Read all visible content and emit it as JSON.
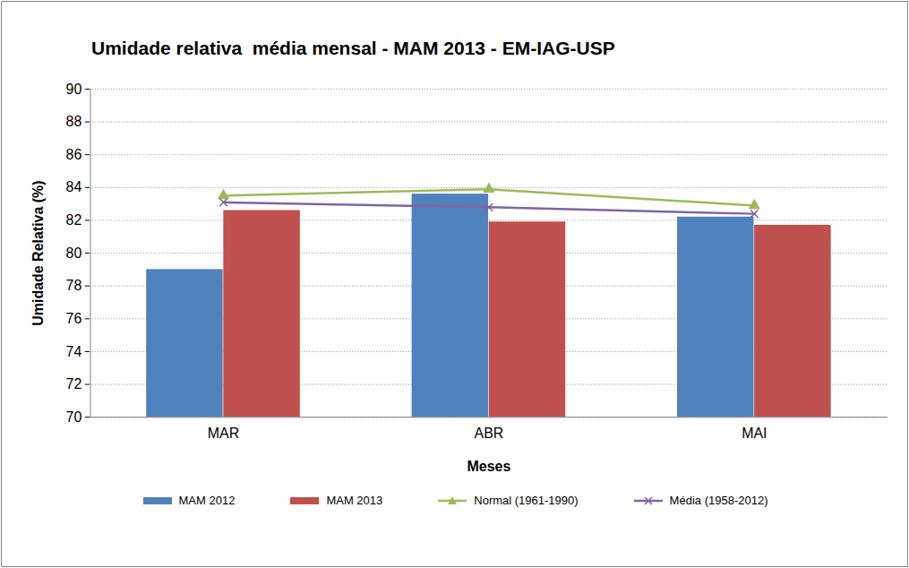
{
  "chart_data": {
    "type": "bar",
    "title": "Umidade relativa  média mensal - MAM 2013 - EM-IAG-USP",
    "x_label": "Meses",
    "y_label": "Umidade Relativa (%)",
    "categories": [
      "MAR",
      "ABR",
      "MAI"
    ],
    "series": [
      {
        "name": "MAM 2012",
        "type": "bar",
        "color": "#4f81bd",
        "values": [
          79.0,
          83.6,
          82.2
        ]
      },
      {
        "name": "MAM 2013",
        "type": "bar",
        "color": "#c0504d",
        "values": [
          82.6,
          81.9,
          81.7
        ]
      },
      {
        "name": "Normal (1961-1990)",
        "type": "line",
        "color": "#9bbb59",
        "marker": "triangle",
        "values": [
          83.5,
          83.9,
          82.9
        ]
      },
      {
        "name": "Média (1958-2012)",
        "type": "line",
        "color": "#8064a2",
        "marker": "x",
        "values": [
          83.1,
          82.8,
          82.4
        ]
      }
    ],
    "ylim": [
      70,
      90
    ],
    "yticks": [
      70,
      72,
      74,
      76,
      78,
      80,
      82,
      84,
      86,
      88,
      90
    ],
    "grid": true,
    "legend": "bottom"
  }
}
